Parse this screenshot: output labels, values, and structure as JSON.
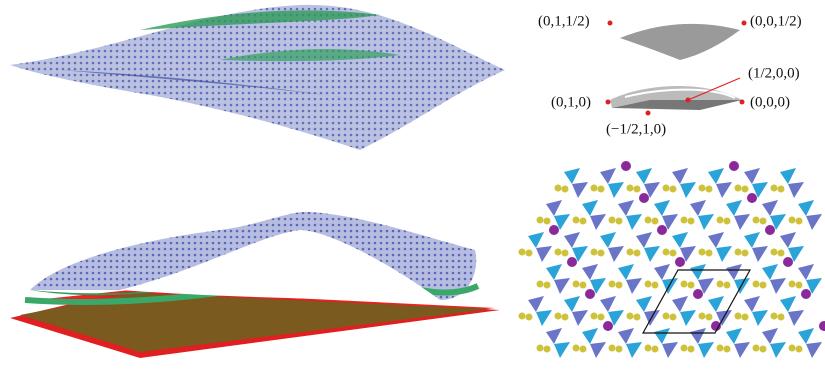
{
  "labels": [
    "(0,1,1/2)",
    "(0,0,1/2)",
    "(1/2,0,0)",
    "(0,1,0)",
    "(0,0,0)",
    "(−1/2,1,0)"
  ]
}
